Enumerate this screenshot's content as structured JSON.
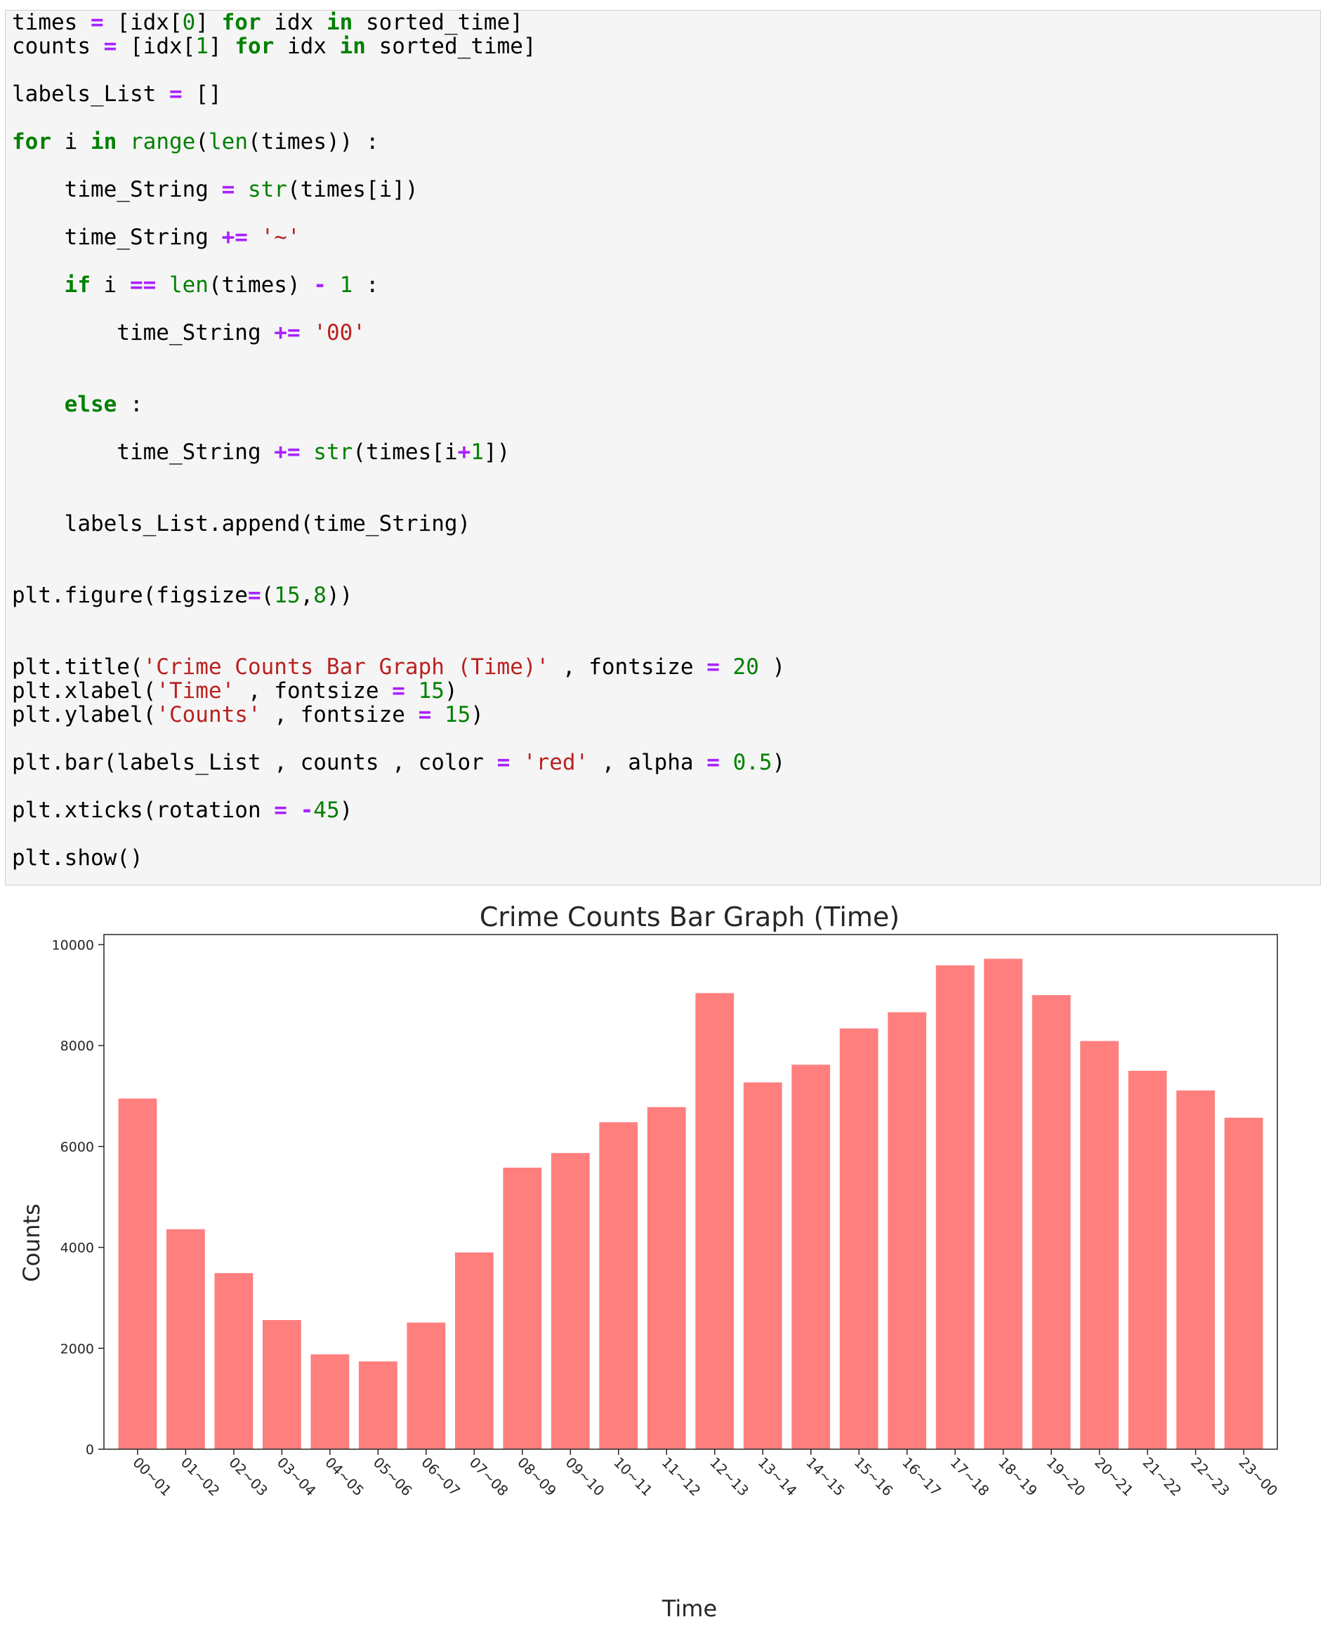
{
  "code_cell": {
    "lines": [
      [
        [
          "pl",
          "times "
        ],
        [
          "op",
          "="
        ],
        [
          "pl",
          " [idx["
        ],
        [
          "num",
          "0"
        ],
        [
          "pl",
          "] "
        ],
        [
          "kw",
          "for"
        ],
        [
          "pl",
          " idx "
        ],
        [
          "kw",
          "in"
        ],
        [
          "pl",
          " sorted_time]"
        ]
      ],
      [
        [
          "pl",
          "counts "
        ],
        [
          "op",
          "="
        ],
        [
          "pl",
          " [idx["
        ],
        [
          "num",
          "1"
        ],
        [
          "pl",
          "] "
        ],
        [
          "kw",
          "for"
        ],
        [
          "pl",
          " idx "
        ],
        [
          "kw",
          "in"
        ],
        [
          "pl",
          " sorted_time]"
        ]
      ],
      [],
      [
        [
          "pl",
          "labels_List "
        ],
        [
          "op",
          "="
        ],
        [
          "pl",
          " []"
        ]
      ],
      [],
      [
        [
          "kw",
          "for"
        ],
        [
          "pl",
          " i "
        ],
        [
          "kw",
          "in"
        ],
        [
          "pl",
          " "
        ],
        [
          "bi",
          "range"
        ],
        [
          "pl",
          "("
        ],
        [
          "bi",
          "len"
        ],
        [
          "pl",
          "(times)) :"
        ]
      ],
      [],
      [
        [
          "pl",
          "    time_String "
        ],
        [
          "op",
          "="
        ],
        [
          "pl",
          " "
        ],
        [
          "bi",
          "str"
        ],
        [
          "pl",
          "(times[i])"
        ]
      ],
      [],
      [
        [
          "pl",
          "    time_String "
        ],
        [
          "op",
          "+="
        ],
        [
          "pl",
          " "
        ],
        [
          "str",
          "'~'"
        ]
      ],
      [],
      [
        [
          "pl",
          "    "
        ],
        [
          "kw",
          "if"
        ],
        [
          "pl",
          " i "
        ],
        [
          "op",
          "=="
        ],
        [
          "pl",
          " "
        ],
        [
          "bi",
          "len"
        ],
        [
          "pl",
          "(times) "
        ],
        [
          "op",
          "-"
        ],
        [
          "pl",
          " "
        ],
        [
          "num",
          "1"
        ],
        [
          "pl",
          " :"
        ]
      ],
      [],
      [
        [
          "pl",
          "        time_String "
        ],
        [
          "op",
          "+="
        ],
        [
          "pl",
          " "
        ],
        [
          "str",
          "'00'"
        ]
      ],
      [],
      [],
      [
        [
          "pl",
          "    "
        ],
        [
          "kw",
          "else"
        ],
        [
          "pl",
          " :"
        ]
      ],
      [],
      [
        [
          "pl",
          "        time_String "
        ],
        [
          "op",
          "+="
        ],
        [
          "pl",
          " "
        ],
        [
          "bi",
          "str"
        ],
        [
          "pl",
          "(times[i"
        ],
        [
          "op",
          "+"
        ],
        [
          "num",
          "1"
        ],
        [
          "pl",
          "])"
        ]
      ],
      [],
      [],
      [
        [
          "pl",
          "    labels_List.append(time_String)"
        ]
      ],
      [],
      [],
      [
        [
          "pl",
          "plt.figure(figsize"
        ],
        [
          "op",
          "="
        ],
        [
          "pl",
          "("
        ],
        [
          "num",
          "15"
        ],
        [
          "pl",
          ","
        ],
        [
          "num",
          "8"
        ],
        [
          "pl",
          "))"
        ]
      ],
      [],
      [],
      [
        [
          "pl",
          "plt.title("
        ],
        [
          "str",
          "'Crime Counts Bar Graph (Time)'"
        ],
        [
          "pl",
          " , fontsize "
        ],
        [
          "op",
          "="
        ],
        [
          "pl",
          " "
        ],
        [
          "num",
          "20"
        ],
        [
          "pl",
          " )"
        ]
      ],
      [
        [
          "pl",
          "plt.xlabel("
        ],
        [
          "str",
          "'Time'"
        ],
        [
          "pl",
          " , fontsize "
        ],
        [
          "op",
          "="
        ],
        [
          "pl",
          " "
        ],
        [
          "num",
          "15"
        ],
        [
          "pl",
          ")"
        ]
      ],
      [
        [
          "pl",
          "plt.ylabel("
        ],
        [
          "str",
          "'Counts'"
        ],
        [
          "pl",
          " , fontsize "
        ],
        [
          "op",
          "="
        ],
        [
          "pl",
          " "
        ],
        [
          "num",
          "15"
        ],
        [
          "pl",
          ")"
        ]
      ],
      [],
      [
        [
          "pl",
          "plt.bar(labels_List , counts , color "
        ],
        [
          "op",
          "="
        ],
        [
          "pl",
          " "
        ],
        [
          "str",
          "'red'"
        ],
        [
          "pl",
          " , alpha "
        ],
        [
          "op",
          "="
        ],
        [
          "pl",
          " "
        ],
        [
          "num",
          "0.5"
        ],
        [
          "pl",
          ")"
        ]
      ],
      [],
      [
        [
          "pl",
          "plt.xticks(rotation "
        ],
        [
          "op",
          "="
        ],
        [
          "pl",
          " "
        ],
        [
          "op",
          "-"
        ],
        [
          "num",
          "45"
        ],
        [
          "pl",
          ")"
        ]
      ],
      [],
      [
        [
          "pl",
          "plt.show()"
        ]
      ]
    ]
  },
  "chart_data": {
    "type": "bar",
    "title": "Crime Counts Bar Graph (Time)",
    "xlabel": "Time",
    "ylabel": "Counts",
    "ylim": [
      0,
      10200
    ],
    "yticks": [
      0,
      2000,
      4000,
      6000,
      8000,
      10000
    ],
    "categories": [
      "00~01",
      "01~02",
      "02~03",
      "03~04",
      "04~05",
      "05~06",
      "06~07",
      "07~08",
      "08~09",
      "09~10",
      "10~11",
      "11~12",
      "12~13",
      "13~14",
      "14~15",
      "15~16",
      "16~17",
      "17~18",
      "18~19",
      "19~20",
      "20~21",
      "21~22",
      "22~23",
      "23~00"
    ],
    "values": [
      6950,
      4360,
      3490,
      2560,
      1880,
      1740,
      2510,
      3900,
      5580,
      5870,
      6480,
      6780,
      9040,
      7270,
      7620,
      8340,
      8660,
      9590,
      9720,
      9000,
      8090,
      7500,
      7110,
      6570
    ],
    "bar_color": "#ff0000",
    "bar_alpha": 0.5,
    "xtick_rotation": -45,
    "grid": false
  }
}
